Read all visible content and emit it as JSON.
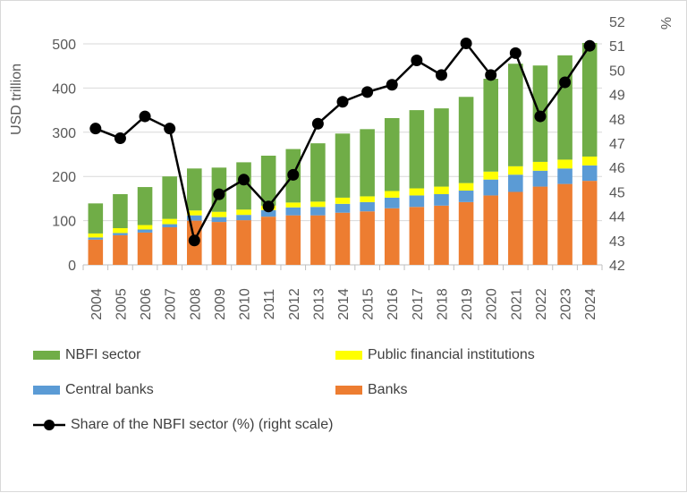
{
  "chart_data": {
    "type": "bar+line",
    "categories": [
      "2004",
      "2005",
      "2006",
      "2007",
      "2008",
      "2009",
      "2010",
      "2011",
      "2012",
      "2013",
      "2014",
      "2015",
      "2016",
      "2017",
      "2018",
      "2019",
      "2020",
      "2021",
      "2022",
      "2023",
      "2024"
    ],
    "series": [
      {
        "name": "Banks",
        "color": "#ED7D31",
        "values": [
          57,
          67,
          73,
          85,
          100,
          97,
          101,
          109,
          112,
          112,
          118,
          121,
          128,
          131,
          134,
          142,
          157,
          165,
          177,
          183,
          190
        ]
      },
      {
        "name": "Central banks",
        "color": "#5B9BD5",
        "values": [
          5,
          5,
          7,
          7,
          12,
          11,
          12,
          15,
          18,
          19,
          20,
          21,
          24,
          26,
          26,
          26,
          36,
          39,
          36,
          35,
          35
        ]
      },
      {
        "name": "Public financial institutions",
        "color": "#FFFF00",
        "values": [
          9,
          11,
          10,
          12,
          11,
          12,
          12,
          10,
          11,
          12,
          14,
          13,
          15,
          16,
          17,
          17,
          18,
          19,
          20,
          20,
          20
        ]
      },
      {
        "name": "NBFI sector",
        "color": "#70AD47",
        "values": [
          68,
          77,
          86,
          96,
          95,
          100,
          107,
          113,
          121,
          132,
          145,
          152,
          165,
          177,
          177,
          195,
          210,
          232,
          218,
          236,
          257
        ]
      }
    ],
    "line": {
      "name": "Share of the NBFI sector (%) (right scale)",
      "color": "#000000",
      "values": [
        47.6,
        47.2,
        48.1,
        47.6,
        43.0,
        44.9,
        45.5,
        44.4,
        45.7,
        47.8,
        48.7,
        49.1,
        49.4,
        50.4,
        49.8,
        51.1,
        49.8,
        50.7,
        48.1,
        49.5,
        51.0
      ]
    },
    "ylabel": "USD trillion",
    "y2label": "%",
    "ylim": [
      0,
      500
    ],
    "yticks": [
      "0",
      "100",
      "200",
      "300",
      "400",
      "500"
    ],
    "y2lim": [
      42,
      52
    ],
    "y2ticks": [
      "42",
      "43",
      "44",
      "45",
      "46",
      "47",
      "48",
      "49",
      "50",
      "51",
      "52"
    ],
    "grid": true,
    "legend_placement": "bottom"
  },
  "legend": {
    "nbfi": "NBFI sector",
    "public": "Public financial institutions",
    "cb": "Central banks",
    "banks": "Banks",
    "share": "Share of the NBFI sector (%) (right scale)"
  }
}
